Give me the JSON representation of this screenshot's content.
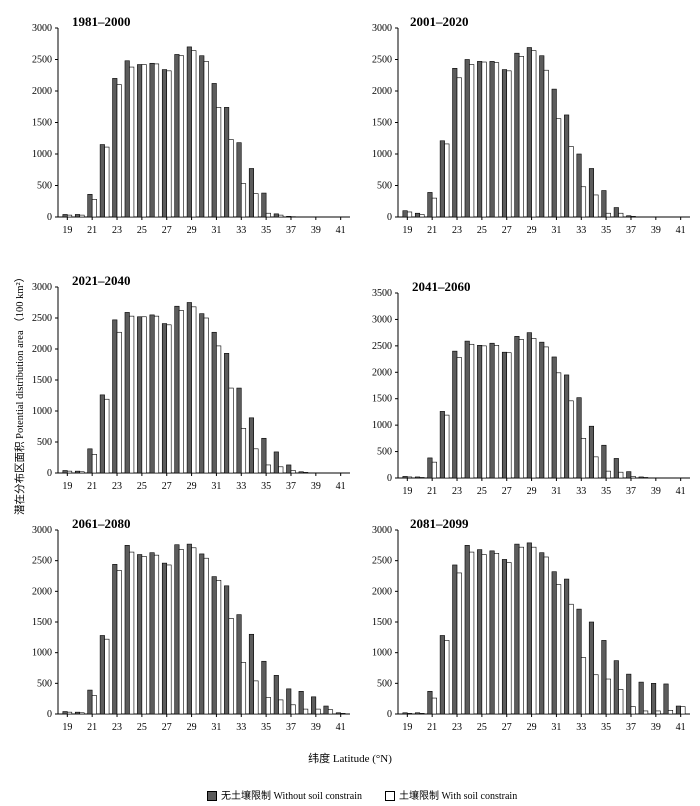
{
  "figure": {
    "xlabel": "纬度 Latitude (°N)",
    "ylabel": "潜在分布区面积 Potential distribution area （100 km²）",
    "legend": {
      "without_label": "无土壤限制 Without soil constrain",
      "with_label": "土壤限制 With soil constrain"
    },
    "colors": {
      "without": "#5c5c5c",
      "with": "#ffffff",
      "edge": "#000000"
    }
  },
  "chart_data": [
    {
      "type": "bar",
      "title": "1981–2000",
      "x": [
        19,
        20,
        21,
        22,
        23,
        24,
        25,
        26,
        27,
        28,
        29,
        30,
        31,
        32,
        33,
        34,
        35,
        36,
        37,
        38,
        39,
        40,
        41
      ],
      "series": [
        {
          "name": "无土壤限制 Without soil constrain",
          "values": [
            40,
            40,
            360,
            1150,
            2200,
            2480,
            2420,
            2440,
            2340,
            2580,
            2700,
            2560,
            2120,
            1740,
            1180,
            770,
            380,
            50,
            10,
            0,
            0,
            0,
            0
          ]
        },
        {
          "name": "土壤限制 With soil constrain",
          "values": [
            30,
            30,
            280,
            1110,
            2100,
            2380,
            2420,
            2430,
            2320,
            2560,
            2640,
            2470,
            1740,
            1230,
            530,
            370,
            60,
            30,
            5,
            0,
            0,
            0,
            0
          ]
        }
      ],
      "ylim": [
        0,
        3000
      ],
      "yticks": [
        0,
        500,
        1000,
        1500,
        2000,
        2500,
        3000
      ],
      "xticks": [
        19,
        21,
        23,
        25,
        27,
        29,
        31,
        33,
        35,
        37,
        39,
        41
      ]
    },
    {
      "type": "bar",
      "title": "2001–2020",
      "x": [
        19,
        20,
        21,
        22,
        23,
        24,
        25,
        26,
        27,
        28,
        29,
        30,
        31,
        32,
        33,
        34,
        35,
        36,
        37,
        38,
        39,
        40,
        41
      ],
      "series": [
        {
          "name": "无土壤限制 Without soil constrain",
          "values": [
            100,
            60,
            390,
            1210,
            2360,
            2500,
            2470,
            2470,
            2340,
            2600,
            2690,
            2560,
            2030,
            1620,
            1000,
            770,
            420,
            150,
            20,
            0,
            0,
            0,
            0
          ]
        },
        {
          "name": "土壤限制 With soil constrain",
          "values": [
            80,
            40,
            300,
            1160,
            2210,
            2420,
            2460,
            2450,
            2320,
            2550,
            2640,
            2330,
            1560,
            1120,
            480,
            350,
            60,
            60,
            10,
            0,
            0,
            0,
            0
          ]
        }
      ],
      "ylim": [
        0,
        3000
      ],
      "yticks": [
        0,
        500,
        1000,
        1500,
        2000,
        2500,
        3000
      ],
      "xticks": [
        19,
        21,
        23,
        25,
        27,
        29,
        31,
        33,
        35,
        37,
        39,
        41
      ]
    },
    {
      "type": "bar",
      "title": "2021–2040",
      "x": [
        19,
        20,
        21,
        22,
        23,
        24,
        25,
        26,
        27,
        28,
        29,
        30,
        31,
        32,
        33,
        34,
        35,
        36,
        37,
        38,
        39,
        40,
        41
      ],
      "series": [
        {
          "name": "无土壤限制 Without soil constrain",
          "values": [
            40,
            30,
            390,
            1260,
            2470,
            2590,
            2520,
            2550,
            2410,
            2690,
            2750,
            2570,
            2270,
            1930,
            1370,
            890,
            560,
            340,
            130,
            20,
            0,
            0,
            0
          ]
        },
        {
          "name": "土壤限制 With soil constrain",
          "values": [
            30,
            20,
            300,
            1190,
            2270,
            2530,
            2520,
            2530,
            2390,
            2620,
            2680,
            2500,
            2050,
            1370,
            720,
            390,
            130,
            100,
            40,
            10,
            0,
            0,
            0
          ]
        }
      ],
      "ylim": [
        0,
        3000
      ],
      "yticks": [
        0,
        500,
        1000,
        1500,
        2000,
        2500,
        3000
      ],
      "xticks": [
        19,
        21,
        23,
        25,
        27,
        29,
        31,
        33,
        35,
        37,
        39,
        41
      ]
    },
    {
      "type": "bar",
      "title": "2041–2060",
      "x": [
        19,
        20,
        21,
        22,
        23,
        24,
        25,
        26,
        27,
        28,
        29,
        30,
        31,
        32,
        33,
        34,
        35,
        36,
        37,
        38,
        39,
        40,
        41
      ],
      "series": [
        {
          "name": "无土壤限制 Without soil constrain",
          "values": [
            30,
            20,
            380,
            1260,
            2400,
            2590,
            2510,
            2550,
            2380,
            2680,
            2750,
            2570,
            2290,
            1950,
            1520,
            980,
            620,
            370,
            120,
            20,
            0,
            0,
            0
          ]
        },
        {
          "name": "土壤限制 With soil constrain",
          "values": [
            20,
            10,
            300,
            1190,
            2280,
            2530,
            2500,
            2510,
            2370,
            2620,
            2640,
            2480,
            1990,
            1460,
            750,
            400,
            130,
            110,
            30,
            10,
            0,
            0,
            0
          ]
        }
      ],
      "ylim": [
        0,
        3500
      ],
      "yticks": [
        0,
        500,
        1000,
        1500,
        2000,
        2500,
        3000,
        3500
      ],
      "xticks": [
        19,
        21,
        23,
        25,
        27,
        29,
        31,
        33,
        35,
        37,
        39,
        41
      ]
    },
    {
      "type": "bar",
      "title": "2061–2080",
      "x": [
        19,
        20,
        21,
        22,
        23,
        24,
        25,
        26,
        27,
        28,
        29,
        30,
        31,
        32,
        33,
        34,
        35,
        36,
        37,
        38,
        39,
        40,
        41
      ],
      "series": [
        {
          "name": "无土壤限制 Without soil constrain",
          "values": [
            40,
            30,
            390,
            1280,
            2440,
            2750,
            2600,
            2630,
            2460,
            2760,
            2770,
            2610,
            2240,
            2090,
            1620,
            1300,
            860,
            630,
            410,
            370,
            280,
            130,
            20
          ]
        },
        {
          "name": "土壤限制 With soil constrain",
          "values": [
            30,
            20,
            300,
            1220,
            2340,
            2640,
            2570,
            2590,
            2430,
            2680,
            2710,
            2540,
            2180,
            1560,
            840,
            540,
            270,
            230,
            150,
            80,
            80,
            70,
            10
          ]
        }
      ],
      "ylim": [
        0,
        3000
      ],
      "yticks": [
        0,
        500,
        1000,
        1500,
        2000,
        2500,
        3000
      ],
      "xticks": [
        19,
        21,
        23,
        25,
        27,
        29,
        31,
        33,
        35,
        37,
        39,
        41
      ]
    },
    {
      "type": "bar",
      "title": "2081–2099",
      "x": [
        19,
        20,
        21,
        22,
        23,
        24,
        25,
        26,
        27,
        28,
        29,
        30,
        31,
        32,
        33,
        34,
        35,
        36,
        37,
        38,
        39,
        40,
        41
      ],
      "series": [
        {
          "name": "无土壤限制 Without soil constrain",
          "values": [
            20,
            20,
            370,
            1280,
            2430,
            2750,
            2680,
            2660,
            2520,
            2770,
            2790,
            2630,
            2320,
            2200,
            1710,
            1500,
            1200,
            870,
            650,
            520,
            500,
            490,
            130
          ]
        },
        {
          "name": "土壤限制 With soil constrain",
          "values": [
            10,
            10,
            260,
            1200,
            2300,
            2640,
            2600,
            2620,
            2470,
            2720,
            2720,
            2560,
            2110,
            1790,
            920,
            640,
            570,
            400,
            120,
            50,
            50,
            60,
            120
          ]
        }
      ],
      "ylim": [
        0,
        3000
      ],
      "yticks": [
        0,
        500,
        1000,
        1500,
        2000,
        2500,
        3000
      ],
      "xticks": [
        19,
        21,
        23,
        25,
        27,
        29,
        31,
        33,
        35,
        37,
        39,
        41
      ]
    }
  ]
}
